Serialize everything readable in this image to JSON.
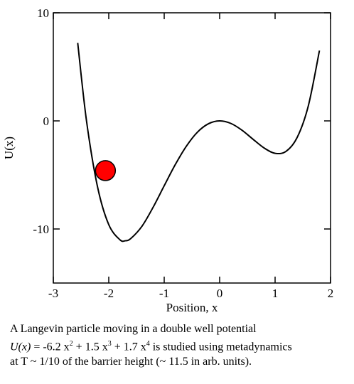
{
  "chart_data": {
    "type": "line",
    "xlabel": "Position, x",
    "ylabel": "U(x)",
    "x": [
      -2.56,
      -2.4,
      -2.2,
      -2.0,
      -1.8,
      -1.7,
      -1.6,
      -1.4,
      -1.2,
      -1.0,
      -0.8,
      -0.6,
      -0.4,
      -0.2,
      0,
      0.2,
      0.4,
      0.6,
      0.8,
      1.0,
      1.2,
      1.4,
      1.6,
      1.8
    ],
    "values": [
      7.22,
      -0.05,
      -6.16,
      -9.6,
      -10.99,
      -11.09,
      -10.87,
      -9.74,
      -7.99,
      -6,
      -4.04,
      -2.34,
      -1.04,
      -0.26,
      0,
      -0.23,
      -0.85,
      -1.69,
      -2.5,
      -3,
      -2.81,
      -1.51,
      1.41,
      6.51
    ],
    "color": "#000000",
    "marker": {
      "x": -2.06,
      "y": -4.6,
      "color": "#ff0000"
    },
    "xlim": [
      -3,
      2
    ],
    "ylim": [
      -15,
      10
    ],
    "xticks": [
      -3,
      -2,
      -1,
      0,
      1,
      2
    ],
    "yticks": [
      -10,
      0,
      10
    ]
  },
  "caption": {
    "line1": "A Langevin particle moving in a double well potential",
    "line2": [
      "U(x)",
      " =  -6.2 x",
      "2",
      " + 1.5 x",
      "3",
      " + 1.7 x",
      "4",
      " is studied using metadynamics"
    ],
    "line3": "at T ~ 1/10 of the barrier height (~ 11.5 in arb. units)."
  }
}
